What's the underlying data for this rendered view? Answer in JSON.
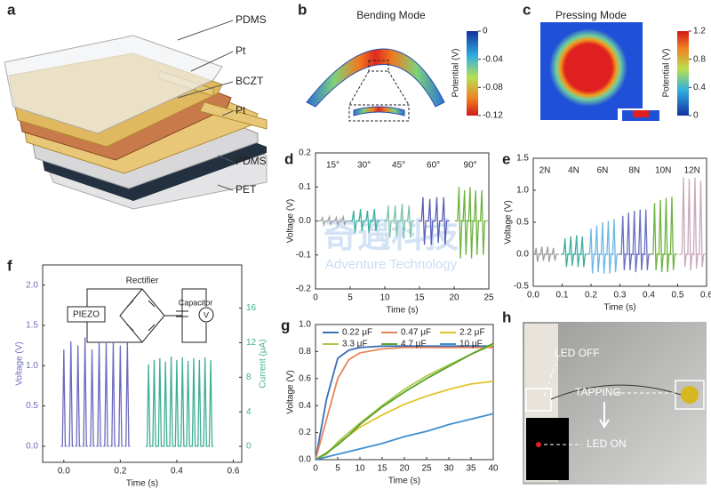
{
  "panel_labels": [
    "a",
    "b",
    "c",
    "d",
    "e",
    "f",
    "g",
    "h"
  ],
  "watermark": {
    "cn": "奇遇科技",
    "en": "Adventure Technology"
  },
  "a": {
    "layers": [
      "PDMS",
      "Pt",
      "BCZT",
      "Pt",
      "PDMS",
      "PET"
    ]
  },
  "b": {
    "title": "Bending Mode",
    "colorbar": {
      "label": "Potential (V)",
      "lim": [
        0,
        -0.12
      ],
      "ticks": [
        0,
        -0.04,
        -0.08,
        -0.12
      ]
    }
  },
  "c": {
    "title": "Pressing Mode",
    "colorbar": {
      "label": "Potential (V)",
      "lim": [
        1.2,
        0
      ],
      "ticks": [
        1.2,
        0.8,
        0.4,
        0
      ]
    }
  },
  "chart_data": [
    {
      "type": "spikes",
      "xlabel": "Time (s)",
      "ylabel": "Voltage (V)",
      "xlim": [
        0,
        25
      ],
      "xticks": [
        0,
        5,
        10,
        15,
        20,
        25
      ],
      "ylim": [
        -0.2,
        0.2
      ],
      "yticks": [
        0.2,
        0.1,
        {
          "value": 0,
          "label": "0.0"
        },
        -0.1,
        -0.2
      ],
      "series": [
        {
          "name": "15°",
          "color": "#a0a0a0",
          "x": [
            1,
            2,
            3,
            4
          ],
          "peaks": [
            0.01,
            0.012,
            0.01,
            0.012
          ],
          "troughs": [
            -0.012,
            -0.01,
            -0.012,
            -0.01
          ]
        },
        {
          "name": "30°",
          "color": "#3ab09e",
          "x": [
            5.5,
            6.5,
            7.5,
            8.5
          ],
          "peaks": [
            0.03,
            0.035,
            0.03,
            0.035
          ],
          "troughs": [
            -0.035,
            -0.03,
            -0.035,
            -0.03
          ]
        },
        {
          "name": "45°",
          "color": "#7cc3a6",
          "x": [
            10.5,
            11.5,
            12.5,
            13.5
          ],
          "peaks": [
            0.045,
            0.045,
            0.05,
            0.045
          ],
          "troughs": [
            -0.05,
            -0.045,
            -0.05,
            -0.05
          ]
        },
        {
          "name": "60°",
          "color": "#5b5fb8",
          "x": [
            15.5,
            16.5,
            17.5,
            18.5
          ],
          "peaks": [
            0.07,
            0.065,
            0.07,
            0.07
          ],
          "troughs": [
            -0.07,
            -0.07,
            -0.065,
            -0.07
          ]
        },
        {
          "name": "90°",
          "color": "#6db33f",
          "x": [
            20.7,
            21.5,
            22.3,
            23.1,
            24
          ],
          "peaks": [
            0.1,
            0.09,
            0.1,
            0.09,
            0.09
          ],
          "troughs": [
            -0.11,
            -0.1,
            -0.11,
            -0.1,
            -0.1
          ]
        }
      ]
    },
    {
      "type": "spikes",
      "xlabel": "Time (s)",
      "ylabel": "Voltage (V)",
      "xlim": [
        0,
        0.6
      ],
      "xticks": [
        {
          "value": 0,
          "label": "0.0"
        },
        0.1,
        0.2,
        0.3,
        0.4,
        0.5,
        0.6
      ],
      "ylim": [
        -0.5,
        1.5
      ],
      "yticks": [
        1.5,
        {
          "value": 1,
          "label": "1.0"
        },
        0.5,
        {
          "value": 0,
          "label": "0.0"
        },
        -0.5
      ],
      "series": [
        {
          "name": "2N",
          "color": "#a0a0a0",
          "x": [
            0.01,
            0.03,
            0.05,
            0.07
          ],
          "peaks": [
            0.1,
            0.12,
            0.12,
            0.1
          ],
          "troughs": [
            -0.12,
            -0.1,
            -0.12,
            -0.1
          ]
        },
        {
          "name": "4N",
          "color": "#3ab09e",
          "x": [
            0.11,
            0.13,
            0.15,
            0.17
          ],
          "peaks": [
            0.25,
            0.28,
            0.3,
            0.28
          ],
          "troughs": [
            -0.2,
            -0.18,
            -0.2,
            -0.2
          ]
        },
        {
          "name": "6N",
          "color": "#6cb7e6",
          "x": [
            0.2,
            0.22,
            0.24,
            0.26,
            0.28
          ],
          "peaks": [
            0.4,
            0.45,
            0.5,
            0.52,
            0.55
          ],
          "troughs": [
            -0.3,
            -0.28,
            -0.3,
            -0.3,
            -0.28
          ]
        },
        {
          "name": "8N",
          "color": "#6a6fc2",
          "x": [
            0.31,
            0.33,
            0.35,
            0.37,
            0.39
          ],
          "peaks": [
            0.6,
            0.65,
            0.68,
            0.7,
            0.7
          ],
          "troughs": [
            -0.25,
            -0.25,
            -0.28,
            -0.25,
            -0.25
          ]
        },
        {
          "name": "10N",
          "color": "#6db33f",
          "x": [
            0.42,
            0.44,
            0.46,
            0.48
          ],
          "peaks": [
            0.8,
            0.85,
            0.88,
            0.9
          ],
          "troughs": [
            -0.25,
            -0.28,
            -0.28,
            -0.25
          ]
        },
        {
          "name": "12N",
          "color": "#c9a9b9",
          "x": [
            0.52,
            0.54,
            0.56,
            0.58
          ],
          "peaks": [
            1.2,
            1.18,
            1.2,
            1.15
          ],
          "troughs": [
            -0.2,
            -0.25,
            -0.22,
            -0.2
          ]
        }
      ]
    },
    {
      "type": "spikes",
      "xlabel": "Time (s)",
      "ylabel": "Voltage (V)",
      "y2label": "Current (μA)",
      "xlim": [
        -0.075,
        0.63
      ],
      "xticks": [
        {
          "value": 0,
          "label": "0.0"
        },
        0.2,
        0.4,
        0.6
      ],
      "ylim": [
        -0.2,
        2.25
      ],
      "yticks": [
        {
          "value": 0,
          "label": "0.0"
        },
        0.5,
        {
          "value": 1,
          "label": "1.0"
        },
        1.5,
        {
          "value": 2,
          "label": "2.0"
        }
      ],
      "y2lim": [
        -1.85,
        21
      ],
      "y2ticks": [
        0,
        4,
        8,
        12,
        16
      ],
      "series": [
        {
          "color": "#6b6bbf",
          "x": [
            0,
            0.025,
            0.05,
            0.075,
            0.1,
            0.125,
            0.15,
            0.175,
            0.2,
            0.225
          ],
          "peaks": [
            1.2,
            1.3,
            1.25,
            1.35,
            1.2,
            1.3,
            1.28,
            1.3,
            1.25,
            1.3
          ]
        },
        {
          "color": "#3fae94",
          "axis": "y2",
          "x": [
            0.3,
            0.32,
            0.34,
            0.36,
            0.38,
            0.4,
            0.42,
            0.44,
            0.46,
            0.48,
            0.5,
            0.52
          ],
          "peaks": [
            9.5,
            10,
            10.2,
            9.8,
            10.4,
            10,
            10.3,
            9.9,
            10.2,
            10,
            10.3,
            10
          ]
        }
      ]
    },
    {
      "type": "line",
      "xlabel": "Time (s)",
      "ylabel": "Voltage (V)",
      "xlim": [
        0,
        40
      ],
      "xticks": [
        0,
        5,
        10,
        15,
        20,
        25,
        30,
        35,
        40
      ],
      "ylim": [
        0,
        1
      ],
      "yticks": [
        {
          "value": 0,
          "label": "0.0"
        },
        0.2,
        0.4,
        0.6,
        0.8,
        {
          "value": 1,
          "label": "1.0"
        }
      ],
      "x": [
        0,
        2.5,
        5,
        7.5,
        10,
        15,
        20,
        25,
        30,
        35,
        40
      ],
      "series": [
        {
          "name": "0.22 μF",
          "color": "#3a6fb5",
          "values": [
            0,
            0.45,
            0.75,
            0.81,
            0.83,
            0.84,
            0.84,
            0.84,
            0.84,
            0.84,
            0.84
          ]
        },
        {
          "name": "0.47 μF",
          "color": "#e8845a",
          "values": [
            0,
            0.3,
            0.6,
            0.74,
            0.79,
            0.82,
            0.83,
            0.83,
            0.83,
            0.83,
            0.83
          ]
        },
        {
          "name": "2.2 μF",
          "color": "#e0c42a",
          "values": [
            0,
            0.05,
            0.12,
            0.18,
            0.24,
            0.33,
            0.41,
            0.47,
            0.52,
            0.56,
            0.58
          ]
        },
        {
          "name": "3.3 μF",
          "color": "#a8c94a",
          "values": [
            0,
            0.04,
            0.13,
            0.2,
            0.27,
            0.4,
            0.52,
            0.62,
            0.7,
            0.78,
            0.85
          ]
        },
        {
          "name": "4.7 μF",
          "color": "#5aa02c",
          "values": [
            0,
            0.05,
            0.11,
            0.18,
            0.26,
            0.39,
            0.5,
            0.6,
            0.69,
            0.78,
            0.86
          ]
        },
        {
          "name": "10 μF",
          "color": "#3f8fd0",
          "values": [
            0,
            0.02,
            0.04,
            0.06,
            0.08,
            0.12,
            0.17,
            0.21,
            0.26,
            0.3,
            0.34
          ]
        }
      ]
    }
  ],
  "f_circuit": {
    "rectifier": "Rectifier",
    "piezo": "PIEZO",
    "capacitor": "Capacitor",
    "meter": "V"
  },
  "h": {
    "led_off": "LED OFF",
    "tapping": "TAPPING",
    "led_on": "LED ON"
  }
}
